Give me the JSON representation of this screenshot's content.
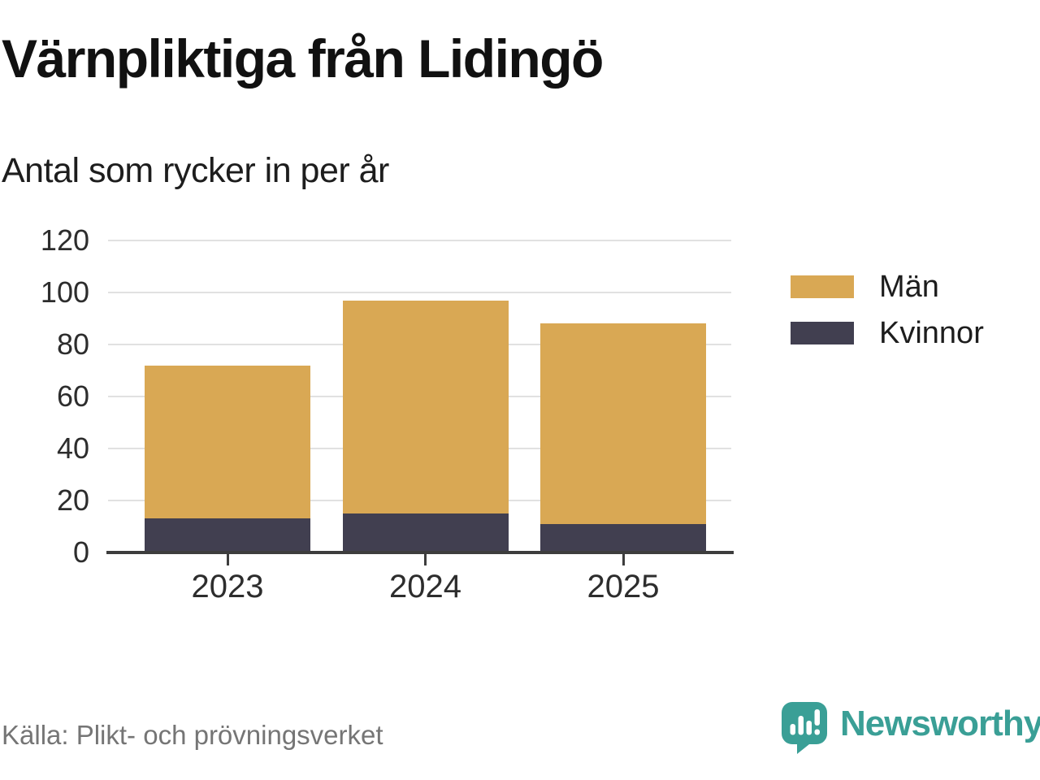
{
  "chart_data": {
    "type": "bar",
    "stacked": true,
    "title": "Värnpliktiga från Lidingö",
    "subtitle": "Antal som rycker in per år",
    "categories": [
      "2023",
      "2024",
      "2025"
    ],
    "series": [
      {
        "name": "Män",
        "color": "#D9A854",
        "values": [
          59,
          82,
          77
        ]
      },
      {
        "name": "Kvinnor",
        "color": "#413F50",
        "values": [
          13,
          15,
          11
        ]
      }
    ],
    "stack_order_bottom_to_top": [
      "Kvinnor",
      "Män"
    ],
    "stacked_totals": [
      72,
      97,
      88
    ],
    "ylim": [
      0,
      120
    ],
    "yticks": [
      0,
      20,
      40,
      60,
      80,
      100,
      120
    ],
    "grid": "horizontal",
    "legend_position": "right",
    "source": "Källa: Plikt- och prövningsverket"
  },
  "branding": {
    "logo_text": "Newsworthy",
    "logo_icon": "newsworthy-bubble-bar-chart-icon",
    "logo_color": "#3A9F96"
  },
  "style": {
    "grid_color": "#E1E1E1",
    "axis_color": "#3D3D3D",
    "text_color": "#1D1D1D",
    "muted_text_color": "#757575"
  }
}
